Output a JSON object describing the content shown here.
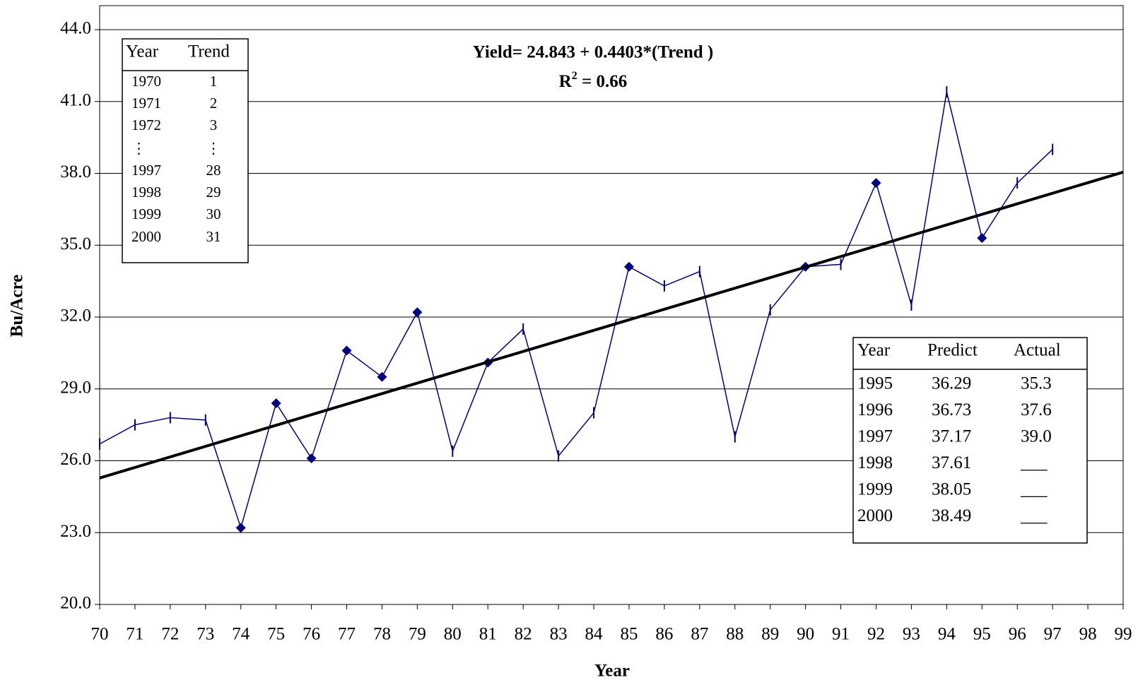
{
  "chart_data": {
    "type": "line",
    "equation": "Yield= 24.843 + 0.4403*(Trend )",
    "r_squared": {
      "base": "R",
      "sup": "2",
      "rest": " = 0.66"
    },
    "x_label": "Year",
    "y_label": "Bu/Acre",
    "x": [
      70,
      71,
      72,
      73,
      74,
      75,
      76,
      77,
      78,
      79,
      80,
      81,
      82,
      83,
      84,
      85,
      86,
      87,
      88,
      89,
      90,
      91,
      92,
      93,
      94,
      95,
      96,
      97
    ],
    "xlim": [
      70,
      99
    ],
    "xticks": [
      70,
      71,
      72,
      73,
      74,
      75,
      76,
      77,
      78,
      79,
      80,
      81,
      82,
      83,
      84,
      85,
      86,
      87,
      88,
      89,
      90,
      91,
      92,
      93,
      94,
      95,
      96,
      97,
      98,
      99
    ],
    "ylim": [
      20,
      44
    ],
    "yticks": [
      {
        "value": 20,
        "label": "20.0"
      },
      {
        "value": 23,
        "label": "23.0"
      },
      {
        "value": 26,
        "label": "26.0"
      },
      {
        "value": 29,
        "label": "29.0"
      },
      {
        "value": 32,
        "label": "32.0"
      },
      {
        "value": 35,
        "label": "35.0"
      },
      {
        "value": 38,
        "label": "38.0"
      },
      {
        "value": 41,
        "label": "41.0"
      },
      {
        "value": 44,
        "label": "44.0"
      }
    ],
    "grid": true,
    "series": [
      {
        "color": "#000080",
        "values": [
          26.7,
          27.5,
          27.8,
          27.7,
          23.2,
          28.4,
          26.1,
          30.6,
          29.5,
          32.2,
          26.4,
          30.1,
          31.5,
          26.2,
          28.0,
          34.1,
          33.3,
          33.9,
          27.0,
          32.3,
          34.1,
          34.2,
          37.6,
          32.5,
          41.4,
          35.3,
          37.6,
          39.0
        ],
        "markers": [
          "dash",
          "dash",
          "dash",
          "dash",
          "diamond",
          "diamond",
          "diamond",
          "diamond",
          "diamond",
          "diamond",
          "dash",
          "diamond",
          "dash",
          "dash",
          "dash",
          "diamond",
          "dash",
          "dash",
          "dash",
          "dash",
          "diamond",
          "dash",
          "diamond",
          "dash",
          "dash",
          "diamond",
          "dash",
          "dash"
        ]
      },
      {
        "color": "#000000",
        "x": [
          70,
          99
        ],
        "values": [
          25.28,
          38.05
        ]
      }
    ],
    "trend_table": {
      "columns": [
        "Year",
        "Trend"
      ],
      "rows": [
        [
          "1970",
          "1"
        ],
        [
          "1971",
          "2"
        ],
        [
          "1972",
          "3"
        ],
        [
          "⋮",
          "⋮"
        ],
        [
          "1997",
          "28"
        ],
        [
          "1998",
          "29"
        ],
        [
          "1999",
          "30"
        ],
        [
          "2000",
          "31"
        ]
      ]
    },
    "prediction_table": {
      "columns": [
        "Year",
        "Predict",
        "Actual"
      ],
      "rows": [
        [
          "1995",
          "36.29",
          "35.3"
        ],
        [
          "1996",
          "36.73",
          "37.6"
        ],
        [
          "1997",
          "37.17",
          "39.0"
        ],
        [
          "1998",
          "37.61",
          "___"
        ],
        [
          "1999",
          "38.05",
          "___"
        ],
        [
          "2000",
          "38.49",
          "___"
        ]
      ]
    }
  }
}
